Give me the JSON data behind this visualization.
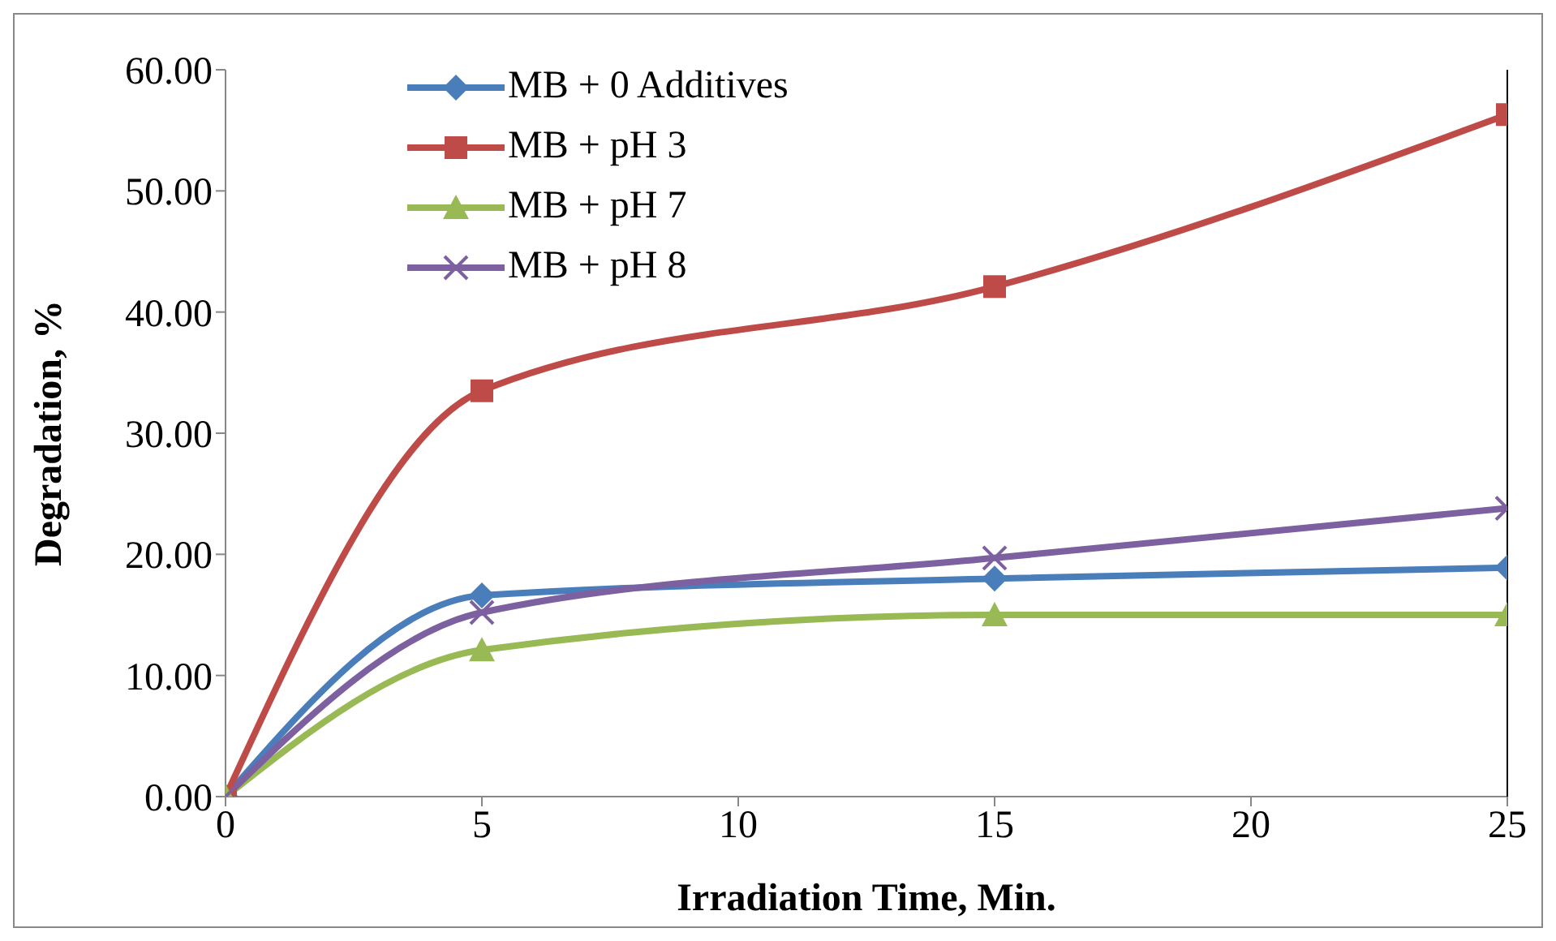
{
  "chart_data": {
    "type": "line",
    "xlabel": "Irradiation Time, Min.",
    "ylabel": "Degradation, %",
    "x": [
      0,
      5,
      15,
      25
    ],
    "series": [
      {
        "name": "MB + 0 Additives",
        "color": "#4a7ebb",
        "values": [
          0,
          16.6,
          18.0,
          18.9
        ],
        "marker": "diamond"
      },
      {
        "name": "MB + pH 3",
        "color": "#be4b48",
        "values": [
          0,
          33.5,
          42.1,
          56.3
        ],
        "marker": "square"
      },
      {
        "name": "MB + pH 7",
        "color": "#98b954",
        "values": [
          0,
          12.1,
          15.0,
          15.0
        ],
        "marker": "triangle"
      },
      {
        "name": "MB + pH 8",
        "color": "#7d60a0",
        "values": [
          0,
          15.2,
          19.7,
          23.8
        ],
        "marker": "cross"
      }
    ],
    "xlim": [
      0,
      25
    ],
    "xticks": [
      0,
      5,
      10,
      15,
      20,
      25
    ],
    "ylim": [
      0,
      60
    ],
    "yticks": [
      {
        "value": 0,
        "label": "0.00"
      },
      {
        "value": 10,
        "label": "10.00"
      },
      {
        "value": 20,
        "label": "20.00"
      },
      {
        "value": 30,
        "label": "30.00"
      },
      {
        "value": 40,
        "label": "40.00"
      },
      {
        "value": 50,
        "label": "50.00"
      },
      {
        "value": 60,
        "label": "60.00"
      }
    ],
    "grid": false,
    "legend": "top left",
    "line_style": "solid"
  }
}
